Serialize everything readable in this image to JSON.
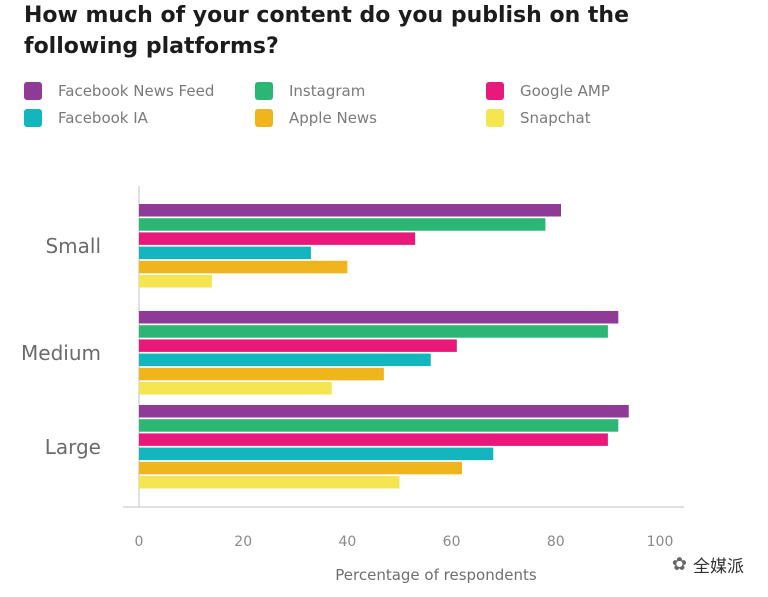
{
  "chart_data": {
    "type": "bar",
    "orientation": "horizontal",
    "title": "How much of your content do you publish on the following platforms?",
    "xlabel": "Percentage of respondents",
    "ylabel": "",
    "xlim": [
      0,
      100
    ],
    "xticks": [
      "0",
      "20",
      "40",
      "60",
      "80",
      "100"
    ],
    "categories": [
      "Small",
      "Medium",
      "Large"
    ],
    "legend_position": "top",
    "grid": false,
    "series": [
      {
        "name": "Facebook News Feed",
        "color": "#8e3a96",
        "values": [
          81,
          92,
          94
        ]
      },
      {
        "name": "Instagram",
        "color": "#2bb673",
        "values": [
          78,
          90,
          92
        ]
      },
      {
        "name": "Google AMP",
        "color": "#e8197a",
        "values": [
          53,
          61,
          90
        ]
      },
      {
        "name": "Facebook IA",
        "color": "#13b5be",
        "values": [
          33,
          56,
          68
        ]
      },
      {
        "name": "Apple News",
        "color": "#f0b41c",
        "values": [
          40,
          47,
          62
        ]
      },
      {
        "name": "Snapchat",
        "color": "#f5e651",
        "values": [
          14,
          37,
          50
        ]
      }
    ]
  },
  "watermark": {
    "text": "全媒派",
    "icon": "wechat-icon"
  }
}
